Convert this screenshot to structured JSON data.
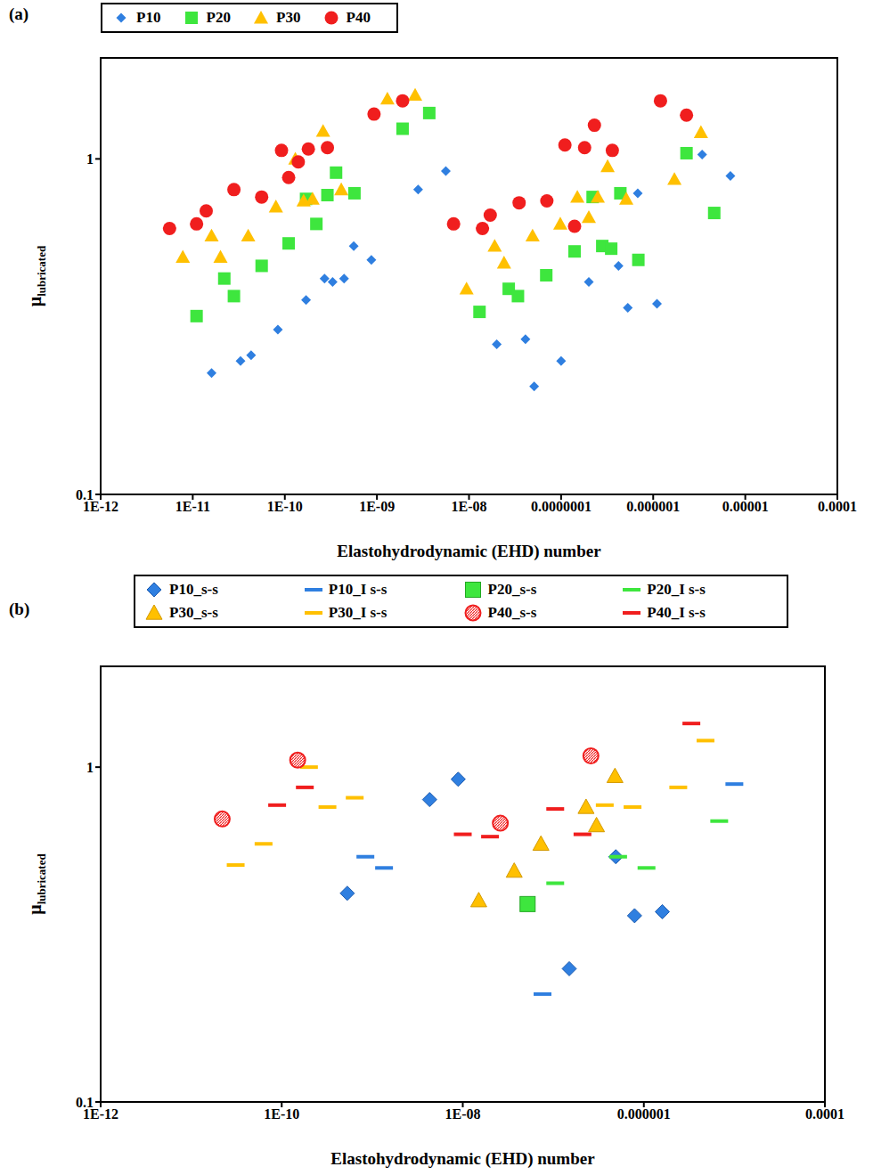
{
  "chart_data": [
    {
      "type": "scatter",
      "title": "(a)",
      "x_label": "Elastohydrodynamic (EHD) number",
      "y_label": "μlubricated",
      "log": true,
      "grid": false,
      "legend": "top",
      "xlim": [
        1e-12,
        0.0001
      ],
      "ylim": [
        0.1,
        2
      ],
      "xticks": [
        {
          "value": 1e-12,
          "label": "1E-12"
        },
        {
          "value": 1e-11,
          "label": "1E-11"
        },
        {
          "value": 1e-10,
          "label": "1E-10"
        },
        {
          "value": 1e-09,
          "label": "1E-09"
        },
        {
          "value": 1e-08,
          "label": "1E-08"
        },
        {
          "value": 1e-07,
          "label": "0.0000001"
        },
        {
          "value": 1e-06,
          "label": "0.000001"
        },
        {
          "value": 1e-05,
          "label": "0.00001"
        },
        {
          "value": 0.0001,
          "label": "0.0001"
        }
      ],
      "yticks": [
        0.1,
        1
      ],
      "series": [
        {
          "name": "P10",
          "color": "#2f7fe0",
          "marker": "diamond",
          "x": [
            1.6e-11,
            3.3e-11,
            4.3e-11,
            8.4e-11,
            1.7e-10,
            2.7e-10,
            3.3e-10,
            4.4e-10,
            5.6e-10,
            8.7e-10,
            2.8e-09,
            5.6e-09,
            2e-08,
            4.1e-08,
            5.1e-08,
            1e-07,
            2e-07,
            4.2e-07,
            5.3e-07,
            6.8e-07,
            1.1e-06,
            3.4e-06,
            6.9e-06
          ],
          "values": [
            0.23,
            0.25,
            0.26,
            0.31,
            0.38,
            0.44,
            0.43,
            0.44,
            0.55,
            0.5,
            0.81,
            0.92,
            0.28,
            0.29,
            0.21,
            0.25,
            0.43,
            0.48,
            0.36,
            0.79,
            0.37,
            1.03,
            0.89
          ]
        },
        {
          "name": "P20",
          "color": "#3ee63e",
          "marker": "square",
          "x": [
            1.1e-11,
            2.2e-11,
            2.8e-11,
            5.6e-11,
            1.1e-10,
            1.7e-10,
            2.2e-10,
            2.9e-10,
            3.6e-10,
            5.7e-10,
            1.9e-09,
            3.7e-09,
            1.3e-08,
            2.7e-08,
            3.4e-08,
            6.9e-08,
            1.4e-07,
            2.2e-07,
            2.8e-07,
            3.5e-07,
            4.4e-07,
            6.9e-07,
            2.3e-06,
            4.6e-06
          ],
          "values": [
            0.34,
            0.44,
            0.39,
            0.48,
            0.56,
            0.76,
            0.64,
            0.78,
            0.91,
            0.79,
            1.23,
            1.37,
            0.35,
            0.41,
            0.39,
            0.45,
            0.53,
            0.77,
            0.55,
            0.54,
            0.79,
            0.5,
            1.04,
            0.69
          ]
        },
        {
          "name": "P30",
          "color": "#ffc000",
          "marker": "triangle",
          "x": [
            7.8e-12,
            1.6e-11,
            2e-11,
            4e-11,
            8e-11,
            1.3e-10,
            1.6e-10,
            2e-10,
            2.6e-10,
            4.1e-10,
            1.3e-09,
            2.6e-09,
            9.4e-09,
            1.9e-08,
            2.4e-08,
            4.9e-08,
            9.8e-08,
            1.5e-07,
            2e-07,
            2.5e-07,
            3.2e-07,
            5.1e-07,
            1.7e-06,
            3.3e-06
          ],
          "values": [
            0.51,
            0.59,
            0.51,
            0.59,
            0.72,
            1.0,
            0.75,
            0.76,
            1.21,
            0.81,
            1.51,
            1.55,
            0.41,
            0.55,
            0.49,
            0.59,
            0.64,
            0.77,
            0.67,
            0.77,
            0.95,
            0.76,
            0.87,
            1.2
          ]
        },
        {
          "name": "P40",
          "color": "#f01e1e",
          "marker": "circle",
          "x": [
            5.6e-12,
            1.1e-11,
            1.4e-11,
            2.8e-11,
            5.6e-11,
            9.2e-11,
            1.1e-10,
            1.4e-10,
            1.8e-10,
            2.9e-10,
            9.3e-10,
            1.9e-09,
            6.8e-09,
            1.4e-08,
            1.7e-08,
            3.5e-08,
            7e-08,
            1.1e-07,
            1.4e-07,
            1.8e-07,
            2.3e-07,
            3.6e-07,
            1.2e-06,
            2.3e-06
          ],
          "values": [
            0.62,
            0.64,
            0.7,
            0.81,
            0.77,
            1.06,
            0.88,
            0.98,
            1.07,
            1.08,
            1.36,
            1.49,
            0.64,
            0.62,
            0.68,
            0.74,
            0.75,
            1.1,
            0.63,
            1.08,
            1.26,
            1.06,
            1.49,
            1.35
          ]
        }
      ]
    },
    {
      "type": "scatter",
      "title": "(b)",
      "x_label": "Elastohydrodynamic (EHD) number",
      "y_label": "μlubricated",
      "log": true,
      "grid": false,
      "legend": "top",
      "xlim": [
        1e-12,
        0.0001
      ],
      "ylim": [
        0.1,
        2
      ],
      "xticks": [
        {
          "value": 1e-12,
          "label": "1E-12"
        },
        {
          "value": 1e-10,
          "label": "1E-10"
        },
        {
          "value": 1e-08,
          "label": "1E-08"
        },
        {
          "value": 1e-06,
          "label": "0.000001"
        },
        {
          "value": 0.0001,
          "label": "0.0001"
        }
      ],
      "yticks": [
        0.1,
        1
      ],
      "series": [
        {
          "name": "P10_s-s",
          "color": "#2f7fe0",
          "marker": "diamond",
          "x": [
            5.3e-10,
            4.3e-09,
            8.9e-09,
            1.5e-07,
            4.9e-07,
            7.9e-07,
            1.6e-06
          ],
          "values": [
            0.42,
            0.8,
            0.92,
            0.25,
            0.54,
            0.36,
            0.37
          ]
        },
        {
          "name": "P10_I s-s",
          "color": "#2f7fe0",
          "marker": "dash",
          "x": [
            8.4e-10,
            1.35e-09,
            7.6e-08,
            1e-05
          ],
          "values": [
            0.54,
            0.5,
            0.21,
            0.89
          ]
        },
        {
          "name": "P20_s-s",
          "color": "#3ee63e",
          "marker": "square",
          "x": [
            5.2e-08
          ],
          "values": [
            0.39
          ]
        },
        {
          "name": "P20_I s-s",
          "color": "#3ee63e",
          "marker": "dash",
          "x": [
            1.05e-07,
            5.2e-07,
            1.07e-06,
            6.8e-06
          ],
          "values": [
            0.45,
            0.54,
            0.5,
            0.69
          ]
        },
        {
          "name": "P30_s-s",
          "color": "#ffc000",
          "marker": "triangle",
          "x": [
            1.5e-08,
            3.7e-08,
            7.3e-08,
            2.3e-07,
            3e-07,
            4.8e-07
          ],
          "values": [
            0.4,
            0.49,
            0.59,
            0.76,
            0.67,
            0.94
          ]
        },
        {
          "name": "P30_I s-s",
          "color": "#ffc000",
          "marker": "dash",
          "x": [
            3.1e-11,
            6.3e-11,
            2e-10,
            3.2e-10,
            6.4e-10,
            3.7e-07,
            7.5e-07,
            2.4e-06,
            4.8e-06
          ],
          "values": [
            0.51,
            0.59,
            1.0,
            0.76,
            0.81,
            0.77,
            0.76,
            0.87,
            1.2
          ]
        },
        {
          "name": "P40_s-s",
          "color": "#f01e1e",
          "marker": "hatched_circle",
          "x": [
            2.2e-11,
            1.5e-10,
            2.6e-08,
            2.6e-07
          ],
          "values": [
            0.7,
            1.05,
            0.68,
            1.08
          ]
        },
        {
          "name": "P40_I s-s",
          "color": "#f01e1e",
          "marker": "dash",
          "x": [
            8.9e-11,
            1.8e-10,
            1e-08,
            2e-08,
            1.05e-07,
            2.1e-07,
            3.35e-06
          ],
          "values": [
            0.77,
            0.87,
            0.63,
            0.62,
            0.75,
            0.63,
            1.35
          ]
        }
      ]
    }
  ]
}
